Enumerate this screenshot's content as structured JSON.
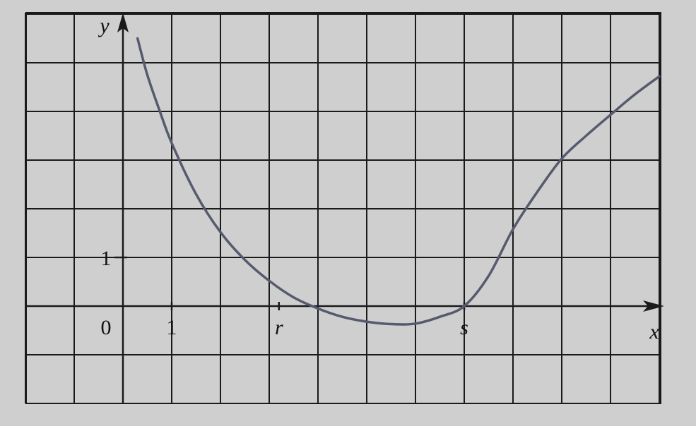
{
  "chart_data": {
    "type": "line",
    "xlabel": "x",
    "ylabel": "y",
    "grid": true,
    "xlim": [
      -2,
      11
    ],
    "ylim": [
      -2,
      6
    ],
    "origin_label": "0",
    "x_tick_labels": [
      {
        "x": 1,
        "text": "1"
      },
      {
        "x": 3.2,
        "text": "r"
      },
      {
        "x": 7,
        "text": "s"
      }
    ],
    "y_tick_labels": [
      {
        "y": 1,
        "text": "1"
      }
    ],
    "series": [
      {
        "x": [
          0.3,
          0.5,
          0.75,
          1,
          1.5,
          2,
          2.5,
          3,
          3.5,
          4,
          4.5,
          5,
          5.5,
          6,
          6.5,
          7,
          7.5,
          8,
          8.5,
          9,
          9.5,
          10,
          10.5,
          11
        ],
        "y": [
          5.5,
          4.75,
          4.02,
          3.35,
          2.3,
          1.52,
          0.95,
          0.52,
          0.18,
          -0.05,
          -0.22,
          -0.32,
          -0.37,
          -0.36,
          -0.22,
          0.0,
          0.62,
          1.58,
          2.35,
          3.03,
          3.5,
          3.93,
          4.35,
          4.72
        ]
      }
    ],
    "colors": {
      "curve": "#555a6e",
      "grid": "#1a1a1a",
      "background": "#cfcfcf"
    }
  }
}
